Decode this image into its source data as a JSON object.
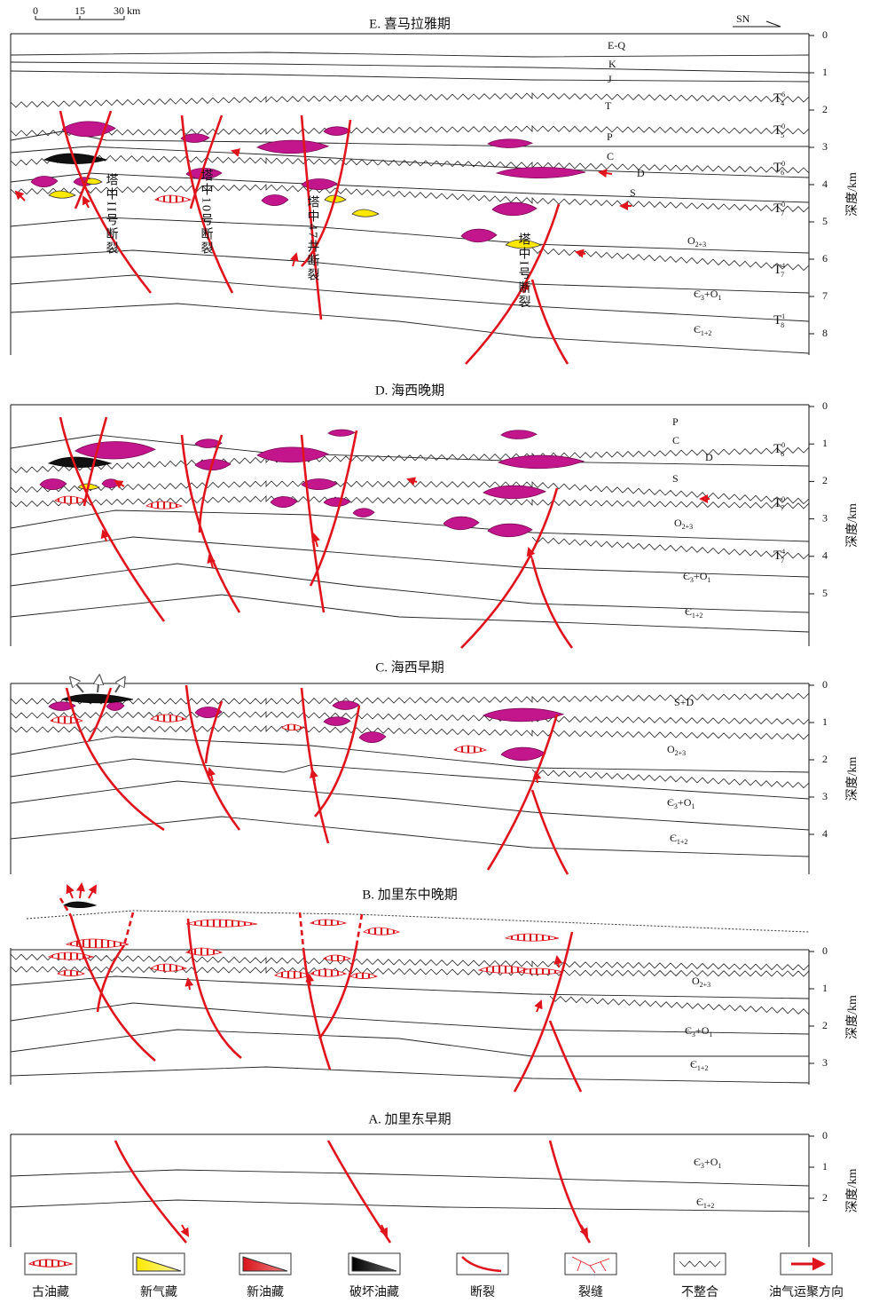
{
  "scale_bar": {
    "labels": [
      "0",
      "15",
      "30 km"
    ]
  },
  "direction": "SN",
  "panels": [
    {
      "title": "E. 喜马拉雅期",
      "depth_axis": {
        "title": "深度/km",
        "ticks": [
          0,
          1,
          2,
          3,
          4,
          5,
          6,
          7,
          8
        ]
      },
      "layers": [
        [
          {
            "text": "E-Q"
          }
        ],
        [
          {
            "text": "K"
          }
        ],
        [
          {
            "text": "J"
          }
        ],
        [
          {
            "text": "T"
          }
        ],
        [
          {
            "text": "P"
          }
        ],
        [
          {
            "text": "C"
          }
        ],
        [
          {
            "text": "D"
          }
        ],
        [
          {
            "text": "S"
          }
        ],
        [
          {
            "text": "O"
          },
          {
            "sub": "2+3"
          }
        ],
        [
          {
            "text": "Є"
          },
          {
            "sub": "3"
          },
          {
            "text": "+O"
          },
          {
            "sub": "1"
          }
        ],
        [
          {
            "text": "Є"
          },
          {
            "sub": "1+2"
          }
        ]
      ],
      "horizons": [
        {
          "text": "T",
          "sup": "6",
          "sub": "4"
        },
        {
          "text": "T",
          "sup": "0",
          "sub": "5"
        },
        {
          "text": "T",
          "sup": "0",
          "sub": "6"
        },
        {
          "text": "T",
          "sup": "0",
          "sub": "7"
        },
        {
          "text": "T",
          "sup": "4",
          "sub": "7"
        },
        {
          "text": "T",
          "sup": "1",
          "sub": "8"
        }
      ],
      "faults": [
        "塔中II号断裂",
        "塔中10号断裂",
        "塔中47井断裂",
        "塔中I号断裂"
      ]
    },
    {
      "title": "D. 海西晚期",
      "depth_axis": {
        "title": "深度/km",
        "ticks": [
          0,
          1,
          2,
          3,
          4,
          5
        ]
      },
      "layers": [
        [
          {
            "text": "P"
          }
        ],
        [
          {
            "text": "C"
          }
        ],
        [
          {
            "text": "D"
          }
        ],
        [
          {
            "text": "S"
          }
        ],
        [
          {
            "text": "O"
          },
          {
            "sub": "2+3"
          }
        ],
        [
          {
            "text": "Є"
          },
          {
            "sub": "3"
          },
          {
            "text": "+O"
          },
          {
            "sub": "1"
          }
        ],
        [
          {
            "text": "Є"
          },
          {
            "sub": "1+2"
          }
        ]
      ],
      "horizons": [
        {
          "text": "T",
          "sup": "0",
          "sub": "6"
        },
        {
          "text": "T",
          "sup": "0",
          "sub": "7"
        },
        {
          "text": "T",
          "sup": "4",
          "sub": "7"
        }
      ],
      "faults": []
    },
    {
      "title": "C. 海西早期",
      "depth_axis": {
        "title": "深度/km",
        "ticks": [
          0,
          1,
          2,
          3,
          4
        ]
      },
      "layers": [
        [
          {
            "text": "S+D"
          }
        ],
        [
          {
            "text": "O"
          },
          {
            "sub": "2+3"
          }
        ],
        [
          {
            "text": "Є"
          },
          {
            "sub": "3"
          },
          {
            "text": "+O"
          },
          {
            "sub": "1"
          }
        ],
        [
          {
            "text": "Є"
          },
          {
            "sub": "1+2"
          }
        ]
      ],
      "horizons": [],
      "faults": []
    },
    {
      "title": "B. 加里东中晚期",
      "depth_axis": {
        "title": "深度/km",
        "ticks": [
          0,
          1,
          2,
          3
        ]
      },
      "layers": [
        [
          {
            "text": "O"
          },
          {
            "sub": "2+3"
          }
        ],
        [
          {
            "text": "Є"
          },
          {
            "sub": "3"
          },
          {
            "text": "+O"
          },
          {
            "sub": "1"
          }
        ],
        [
          {
            "text": "Є"
          },
          {
            "sub": "1+2"
          }
        ]
      ],
      "horizons": [],
      "faults": []
    },
    {
      "title": "A. 加里东早期",
      "depth_axis": {
        "title": "深度/km",
        "ticks": [
          0,
          1,
          2
        ]
      },
      "layers": [
        [
          {
            "text": "Є"
          },
          {
            "sub": "3"
          },
          {
            "text": "+O"
          },
          {
            "sub": "1"
          }
        ],
        [
          {
            "text": "Є"
          },
          {
            "sub": "1+2"
          }
        ]
      ],
      "horizons": [],
      "faults": []
    }
  ],
  "legend": [
    "古油藏",
    "新气藏",
    "新油藏",
    "破坏油藏",
    "断裂",
    "裂缝",
    "不整合",
    "油气运聚方向"
  ]
}
